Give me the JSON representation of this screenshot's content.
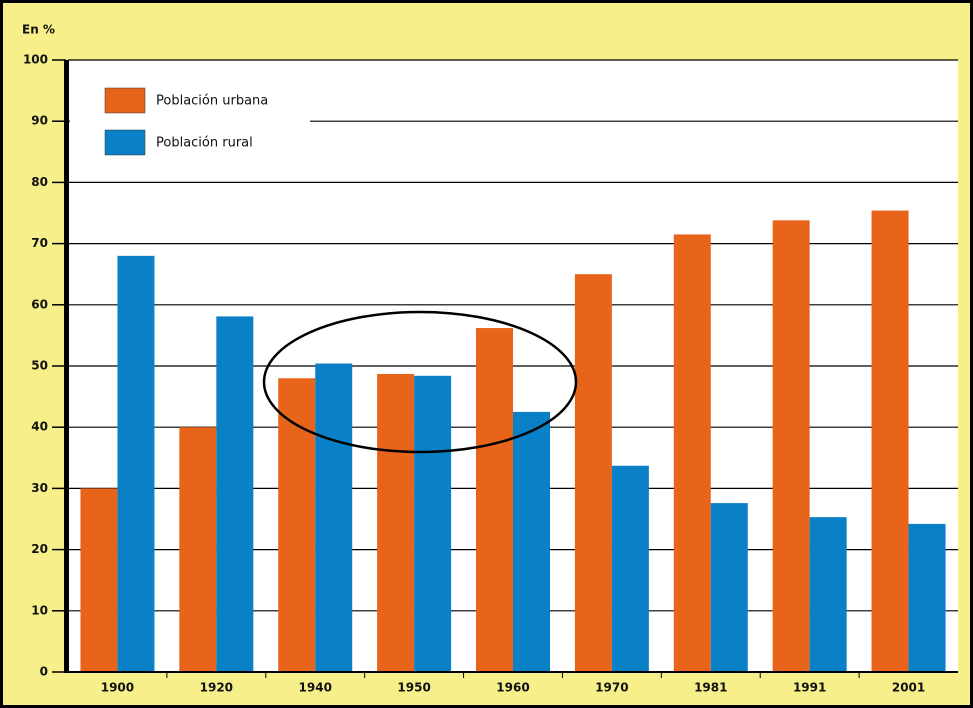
{
  "chart_data": {
    "type": "bar",
    "y_label": "En %",
    "categories": [
      "1900",
      "1920",
      "1940",
      "1950",
      "1960",
      "1970",
      "1981",
      "1991",
      "2001"
    ],
    "series": [
      {
        "name": "Población urbana",
        "color": "#e8641a",
        "values": [
          30,
          40,
          48,
          48.7,
          56.2,
          65,
          71.5,
          73.8,
          75.4
        ]
      },
      {
        "name": "Población rural",
        "color": "#0a80c6",
        "values": [
          68,
          58.1,
          50.4,
          48.4,
          42.5,
          33.7,
          27.6,
          25.3,
          24.2
        ]
      }
    ],
    "ylim": [
      0,
      100
    ],
    "yticks": [
      0,
      10,
      20,
      30,
      40,
      50,
      60,
      70,
      80,
      90,
      100
    ],
    "grid": true,
    "legend": "top-left"
  }
}
